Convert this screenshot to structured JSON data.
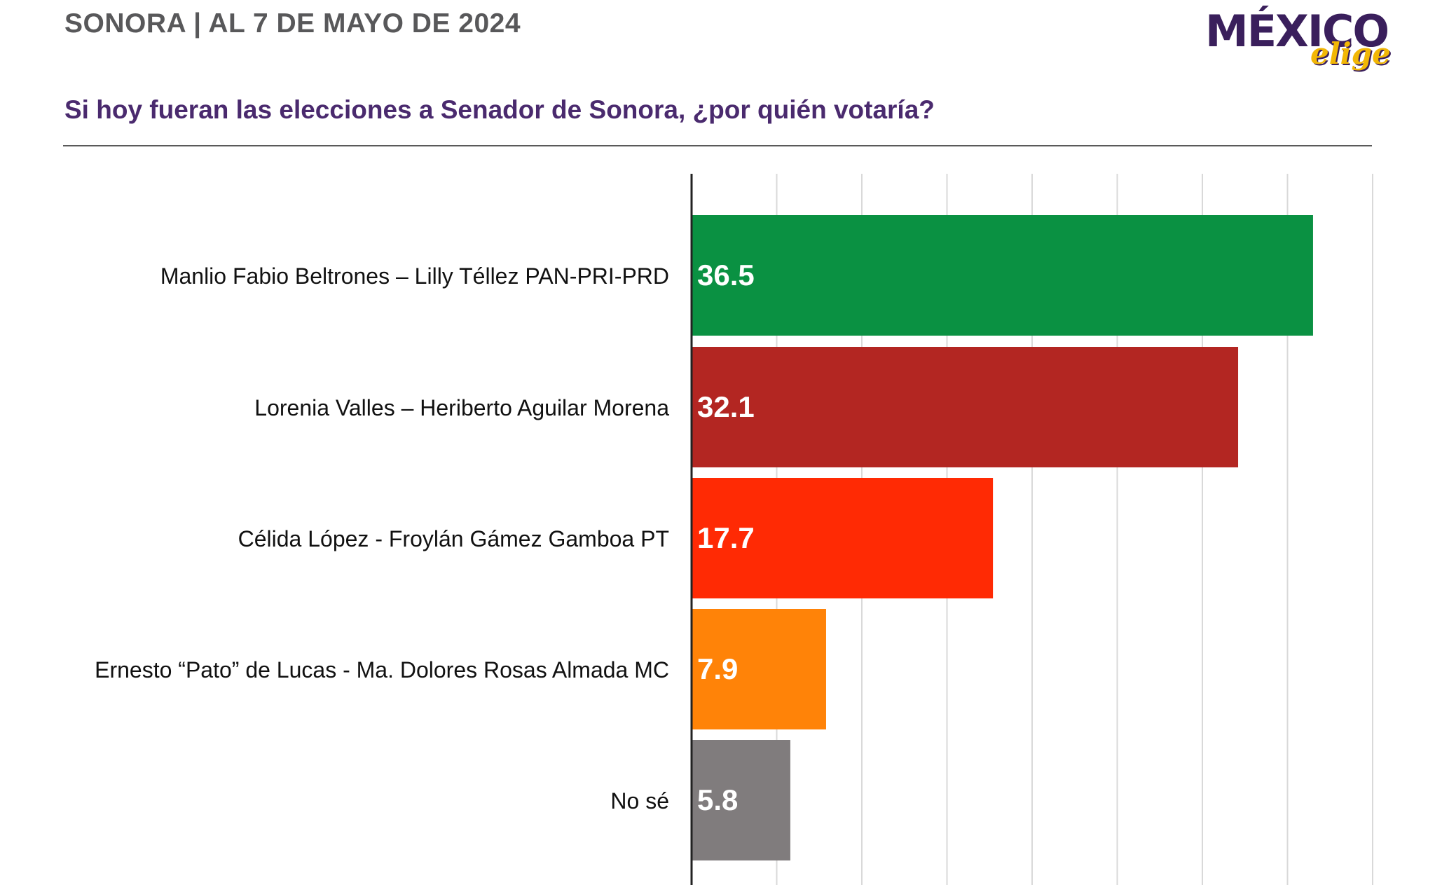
{
  "header": {
    "subtitle": "SONORA | AL 7 DE MAYO DE 2024",
    "logo_word": "MÉXICO",
    "logo_tag": "elige",
    "question": "Si hoy fueran las elecciones a Senador de Sonora, ¿por quién votaría?"
  },
  "chart_data": {
    "type": "bar",
    "orientation": "horizontal",
    "title": "Si hoy fueran las elecciones a Senador de Sonora, ¿por quién votaría?",
    "categories": [
      "Manlio Fabio Beltrones – Lilly Téllez PAN-PRI-PRD",
      "Lorenia Valles – Heriberto Aguilar Morena",
      "Célida López - Froylán Gámez Gamboa PT",
      "Ernesto “Pato” de Lucas - Ma. Dolores Rosas Almada MC",
      "No sé"
    ],
    "values": [
      36.5,
      32.1,
      17.7,
      7.9,
      5.8
    ],
    "labels": [
      "36.5",
      "32.1",
      "17.7",
      "7.9",
      "5.8"
    ],
    "colors": [
      "#0a9142",
      "#b32622",
      "#ff2a04",
      "#ff8308",
      "#807c7d"
    ],
    "xlim": [
      0,
      40
    ],
    "grid": true,
    "xlabel": "",
    "ylabel": ""
  }
}
